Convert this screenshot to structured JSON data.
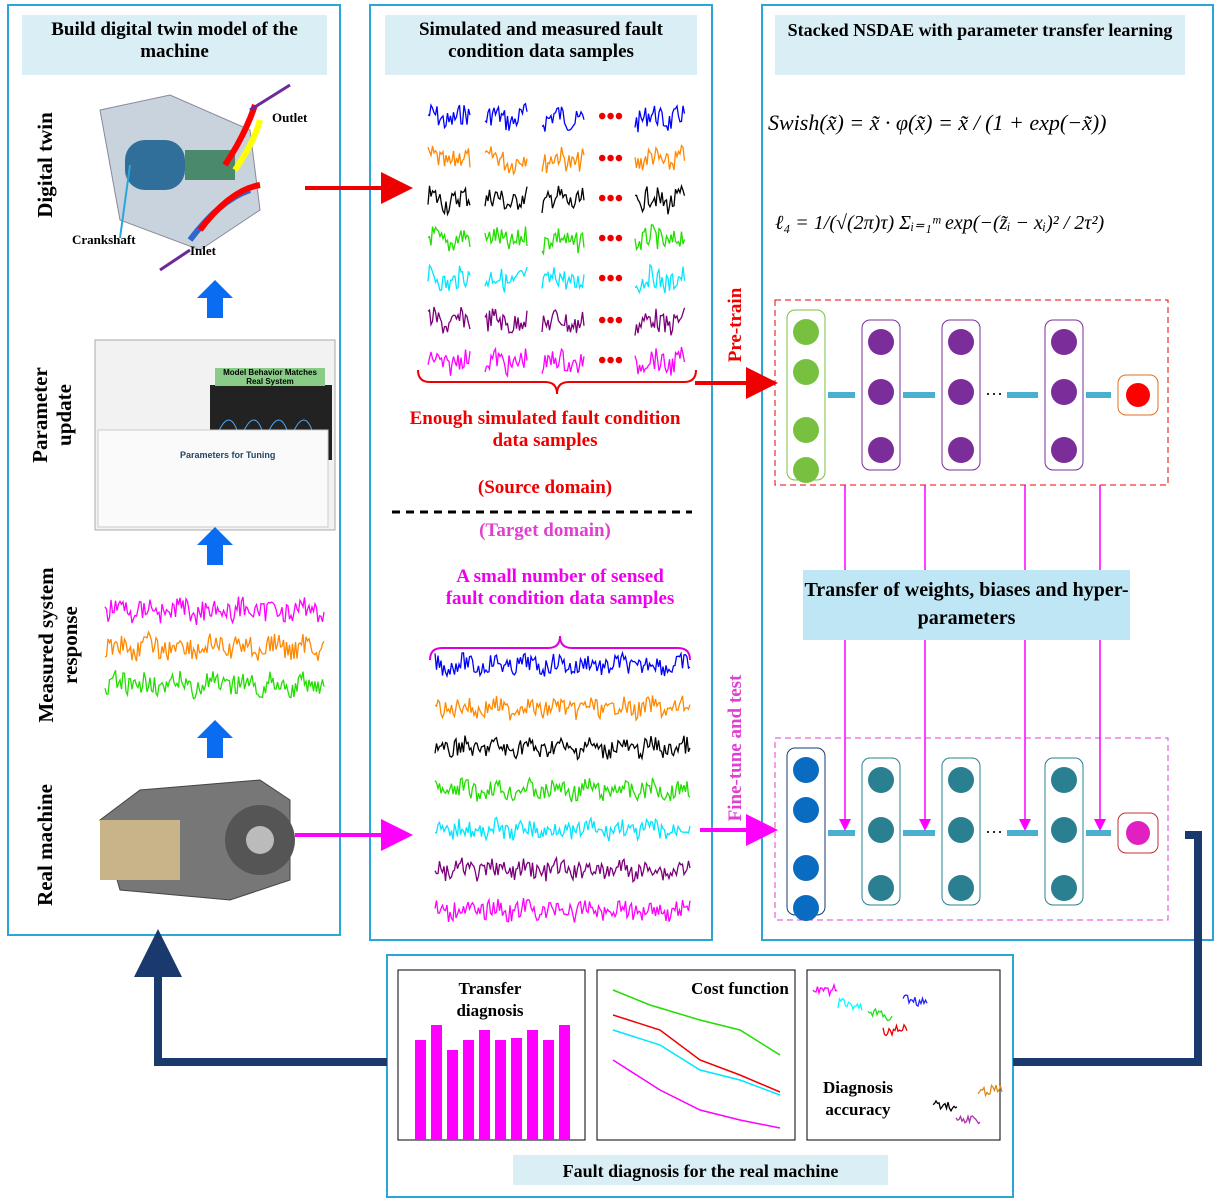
{
  "panels": [
    {
      "title": "Build digital twin model of the machine",
      "side_labels": [
        "Digital twin",
        "Parameter update",
        "Measured system response",
        "Real machine"
      ],
      "annotations": [
        "Outlet",
        "Crankshaft",
        "Inlet"
      ],
      "screenshot_labels": [
        "Model Behavior Matches Real System",
        "Parameters for Tuning"
      ]
    },
    {
      "title": "Simulated and measured fault condition data samples",
      "source_caption": "Enough simulated fault condition data samples",
      "source_domain": "(Source domain)",
      "target_domain": "(Target domain)",
      "target_caption": "A small number of sensed fault condition data samples",
      "pretrain": "Pre-train",
      "finetune": "Fine-tune and test"
    },
    {
      "title": "Stacked NSDAE with parameter transfer learning",
      "equations": [
        "Swish(x̃) = x̃ · φ(x̃) = x̃ / (1 + exp(−x̃))",
        "ℓ₄ = 1/(√(2π)τ) Σᵢ₌₁ᵐ exp(−(z̃ᵢ − xᵢ)² / 2τ²)"
      ],
      "transfer": "Transfer of weights, biases and hyper-parameters"
    }
  ],
  "bottom": {
    "title": "Fault diagnosis for the real machine",
    "subpanels": [
      "Transfer diagnosis",
      "Cost function",
      "Diagnosis accuracy"
    ]
  }
}
